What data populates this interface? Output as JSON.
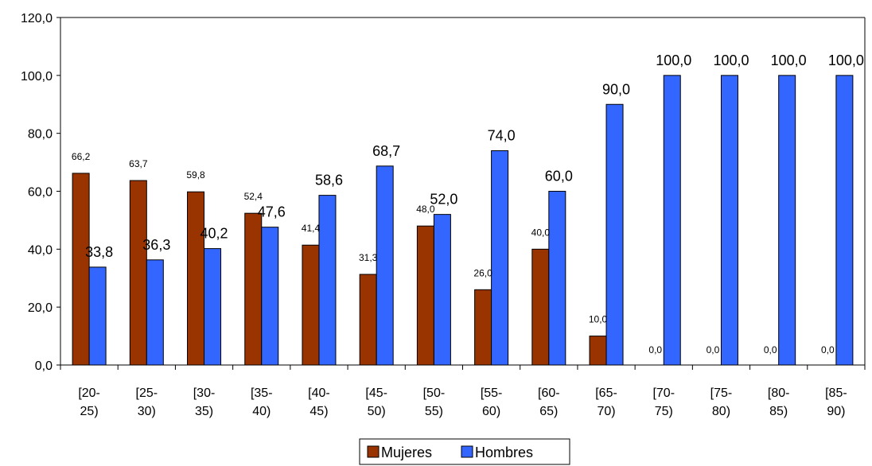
{
  "chart_data": {
    "type": "bar",
    "categories": [
      [
        "[20-",
        "25)"
      ],
      [
        "[25-",
        "30)"
      ],
      [
        "[30-",
        "35)"
      ],
      [
        "[35-",
        "40)"
      ],
      [
        "[40-",
        "45)"
      ],
      [
        "[45-",
        "50)"
      ],
      [
        "[50-",
        "55)"
      ],
      [
        "[55-",
        "60)"
      ],
      [
        "[60-",
        "65)"
      ],
      [
        "[65-",
        "70)"
      ],
      [
        "[70-",
        "75)"
      ],
      [
        "[75-",
        "80)"
      ],
      [
        "[80-",
        "85)"
      ],
      [
        "[85-",
        "90)"
      ]
    ],
    "series": [
      {
        "name": "Mujeres",
        "color": "#993300",
        "values": [
          66.2,
          63.7,
          59.8,
          52.4,
          41.4,
          31.3,
          48.0,
          26.0,
          40.0,
          10.0,
          0.0,
          0.0,
          0.0,
          0.0
        ],
        "labels": [
          "66,2",
          "63,7",
          "59,8",
          "52,4",
          "41,4",
          "31,3",
          "48,0",
          "26,0",
          "40,0",
          "10,0",
          "0,0",
          "0,0",
          "0,0",
          "0,0"
        ]
      },
      {
        "name": "Hombres",
        "color": "#3366FF",
        "values": [
          33.8,
          36.3,
          40.2,
          47.6,
          58.6,
          68.7,
          52.0,
          74.0,
          60.0,
          90.0,
          100.0,
          100.0,
          100.0,
          100.0
        ],
        "labels": [
          "33,8",
          "36,3",
          "40,2",
          "47,6",
          "58,6",
          "68,7",
          "52,0",
          "74,0",
          "60,0",
          "90,0",
          "100,0",
          "100,0",
          "100,0",
          "100,0"
        ]
      }
    ],
    "y_ticks": [
      "0,0",
      "20,0",
      "40,0",
      "60,0",
      "80,0",
      "100,0",
      "120,0"
    ],
    "ylim": [
      0,
      120
    ],
    "grid": false,
    "legend_position": "bottom"
  }
}
